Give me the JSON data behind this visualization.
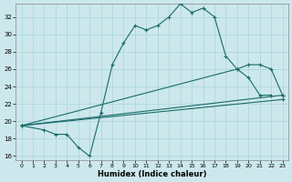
{
  "xlabel": "Humidex (Indice chaleur)",
  "bg_color": "#cce8ec",
  "grid_color": "#a8d5db",
  "line_color": "#1a6b6b",
  "xlim": [
    -0.5,
    23.5
  ],
  "ylim": [
    15.5,
    33.5
  ],
  "xticks": [
    0,
    1,
    2,
    3,
    4,
    5,
    6,
    7,
    8,
    9,
    10,
    11,
    12,
    13,
    14,
    15,
    16,
    17,
    18,
    19,
    20,
    21,
    22,
    23
  ],
  "yticks": [
    16,
    18,
    20,
    22,
    24,
    26,
    28,
    30,
    32
  ],
  "line1_x": [
    0,
    2,
    3,
    4,
    5,
    6,
    7,
    8,
    9,
    10,
    11,
    12,
    13,
    14,
    15,
    16,
    17,
    18,
    19,
    20,
    21,
    22
  ],
  "line1_y": [
    19.5,
    19.0,
    18.5,
    18.5,
    17.0,
    16.0,
    21.0,
    26.5,
    29.0,
    31.0,
    30.5,
    31.0,
    32.0,
    33.5,
    32.5,
    33.0,
    32.0,
    27.5,
    26.0,
    25.0,
    23.0,
    23.0
  ],
  "line3_x": [
    0,
    19,
    20,
    21,
    22,
    23
  ],
  "line3_y": [
    19.5,
    26.0,
    26.5,
    26.5,
    26.0,
    23.0
  ],
  "line4_x": [
    0,
    23
  ],
  "line4_y": [
    19.5,
    23.0
  ],
  "line5_x": [
    0,
    23
  ],
  "line5_y": [
    19.5,
    22.5
  ]
}
